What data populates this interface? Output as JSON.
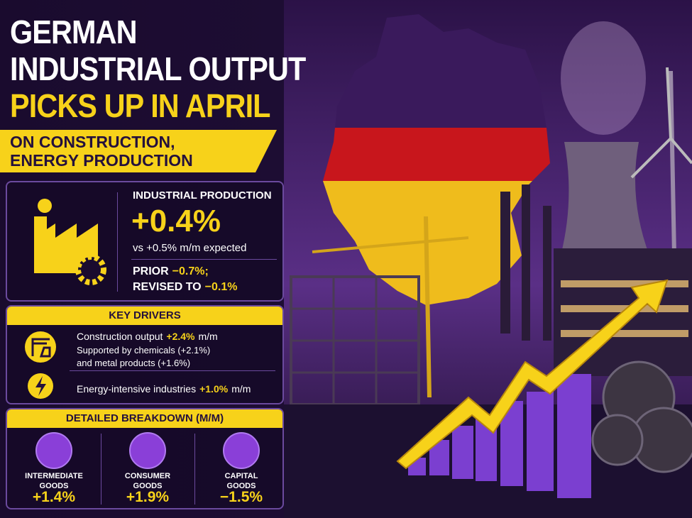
{
  "header": {
    "title_lines": [
      "GERMAN",
      "INDUSTRIAL OUTPUT",
      "PICKS UP IN APRIL"
    ],
    "subtitle_lines": [
      "ON CONSTRUCTION,",
      "ENERGY PRODUCTION"
    ]
  },
  "headline": {
    "label": "INDUSTRIAL PRODUCTION",
    "value": "+0.4%",
    "expected": "vs +0.5% m/m expected",
    "prior": {
      "label": "PRIOR",
      "value": "−0.7%;"
    },
    "revised": {
      "label": "REVISED TO",
      "value": "−0.1%"
    }
  },
  "key_drivers": {
    "title": "KEY DRIVERS",
    "items": [
      {
        "text": "Construction output",
        "value": "+2.4%",
        "unit": "m/m",
        "details": [
          "Supported by chemicals (+2.1%)",
          "and metal products (+1.6%)"
        ]
      },
      {
        "text": "Energy-intensive industries",
        "value": "+1.0%",
        "unit": "m/m"
      }
    ]
  },
  "breakdown": {
    "title": "DETAILED BREAKDOWN (M/M)",
    "items": [
      {
        "label_lines": [
          "INTERMEDIATE",
          "GOODS"
        ],
        "value": "+1.4%"
      },
      {
        "label_lines": [
          "CONSUMER",
          "GOODS"
        ],
        "value": "+1.9%"
      },
      {
        "label_lines": [
          "CAPITAL",
          "GOODS"
        ],
        "value": "−1.5%"
      }
    ]
  }
}
